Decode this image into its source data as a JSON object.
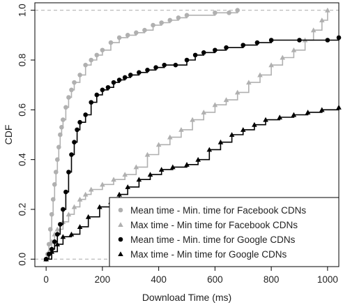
{
  "chart_data": {
    "type": "line",
    "title": "",
    "xlabel": "Download Time (ms)",
    "ylabel": "CDF",
    "xlim": [
      -40,
      1040
    ],
    "ylim": [
      -0.03,
      1.03
    ],
    "x_ticks": [
      0,
      200,
      400,
      600,
      800,
      1000
    ],
    "y_ticks": [
      0.0,
      0.2,
      0.4,
      0.6,
      0.8,
      1.0
    ],
    "x_tick_labels": [
      "0",
      "200",
      "400",
      "600",
      "800",
      "1000"
    ],
    "y_tick_labels": [
      "0.0",
      "0.2",
      "0.4",
      "0.6",
      "0.8",
      "1.0"
    ],
    "reference_lines": [
      0.0,
      1.0
    ],
    "legend_position": "bottom-right",
    "series": [
      {
        "name": "Mean time - Min. time for Facebook CDNs",
        "color": "#b0b0b0",
        "marker": "circle",
        "points": [
          [
            0,
            0.0
          ],
          [
            5,
            0.02
          ],
          [
            10,
            0.06
          ],
          [
            15,
            0.12
          ],
          [
            20,
            0.18
          ],
          [
            25,
            0.24
          ],
          [
            30,
            0.3
          ],
          [
            35,
            0.35
          ],
          [
            40,
            0.4
          ],
          [
            45,
            0.45
          ],
          [
            50,
            0.5
          ],
          [
            55,
            0.53
          ],
          [
            60,
            0.56
          ],
          [
            70,
            0.61
          ],
          [
            80,
            0.65
          ],
          [
            90,
            0.68
          ],
          [
            100,
            0.71
          ],
          [
            120,
            0.74
          ],
          [
            140,
            0.78
          ],
          [
            160,
            0.8
          ],
          [
            180,
            0.82
          ],
          [
            200,
            0.84
          ],
          [
            230,
            0.87
          ],
          [
            260,
            0.89
          ],
          [
            290,
            0.9
          ],
          [
            320,
            0.91
          ],
          [
            350,
            0.92
          ],
          [
            380,
            0.94
          ],
          [
            410,
            0.95
          ],
          [
            440,
            0.96
          ],
          [
            470,
            0.97
          ],
          [
            500,
            0.98
          ],
          [
            600,
            0.99
          ],
          [
            650,
            0.99
          ],
          [
            680,
            1.0
          ]
        ]
      },
      {
        "name": "Max time - Min time for Facebook CDNs",
        "color": "#b0b0b0",
        "marker": "triangle",
        "points": [
          [
            0,
            0.0
          ],
          [
            10,
            0.03
          ],
          [
            20,
            0.07
          ],
          [
            30,
            0.1
          ],
          [
            40,
            0.12
          ],
          [
            60,
            0.15
          ],
          [
            80,
            0.18
          ],
          [
            100,
            0.21
          ],
          [
            120,
            0.24
          ],
          [
            140,
            0.26
          ],
          [
            160,
            0.28
          ],
          [
            200,
            0.3
          ],
          [
            240,
            0.32
          ],
          [
            280,
            0.34
          ],
          [
            320,
            0.37
          ],
          [
            360,
            0.42
          ],
          [
            400,
            0.46
          ],
          [
            440,
            0.49
          ],
          [
            480,
            0.52
          ],
          [
            520,
            0.56
          ],
          [
            560,
            0.59
          ],
          [
            600,
            0.62
          ],
          [
            640,
            0.64
          ],
          [
            680,
            0.67
          ],
          [
            720,
            0.71
          ],
          [
            760,
            0.74
          ],
          [
            800,
            0.78
          ],
          [
            840,
            0.81
          ],
          [
            880,
            0.84
          ],
          [
            920,
            0.88
          ],
          [
            950,
            0.92
          ],
          [
            980,
            0.96
          ],
          [
            1000,
            1.0
          ]
        ]
      },
      {
        "name": "Mean time - Min. time for Google CDNs",
        "color": "#000000",
        "marker": "circle",
        "points": [
          [
            0,
            0.0
          ],
          [
            10,
            0.02
          ],
          [
            20,
            0.04
          ],
          [
            30,
            0.07
          ],
          [
            40,
            0.1
          ],
          [
            50,
            0.14
          ],
          [
            60,
            0.2
          ],
          [
            70,
            0.27
          ],
          [
            80,
            0.35
          ],
          [
            90,
            0.42
          ],
          [
            100,
            0.47
          ],
          [
            110,
            0.52
          ],
          [
            120,
            0.55
          ],
          [
            140,
            0.58
          ],
          [
            160,
            0.63
          ],
          [
            180,
            0.66
          ],
          [
            200,
            0.68
          ],
          [
            220,
            0.69
          ],
          [
            240,
            0.71
          ],
          [
            260,
            0.72
          ],
          [
            280,
            0.73
          ],
          [
            300,
            0.74
          ],
          [
            330,
            0.75
          ],
          [
            360,
            0.76
          ],
          [
            390,
            0.77
          ],
          [
            420,
            0.78
          ],
          [
            460,
            0.78
          ],
          [
            500,
            0.8
          ],
          [
            530,
            0.82
          ],
          [
            560,
            0.83
          ],
          [
            600,
            0.84
          ],
          [
            640,
            0.85
          ],
          [
            700,
            0.86
          ],
          [
            750,
            0.87
          ],
          [
            800,
            0.88
          ],
          [
            900,
            0.88
          ],
          [
            1000,
            0.88
          ],
          [
            1040,
            0.89
          ]
        ]
      },
      {
        "name": "Max time - Min time for Google CDNs",
        "color": "#000000",
        "marker": "triangle",
        "points": [
          [
            0,
            0.0
          ],
          [
            20,
            0.03
          ],
          [
            40,
            0.06
          ],
          [
            60,
            0.09
          ],
          [
            90,
            0.1
          ],
          [
            120,
            0.13
          ],
          [
            150,
            0.17
          ],
          [
            190,
            0.21
          ],
          [
            230,
            0.23
          ],
          [
            260,
            0.26
          ],
          [
            290,
            0.29
          ],
          [
            330,
            0.32
          ],
          [
            370,
            0.34
          ],
          [
            410,
            0.36
          ],
          [
            450,
            0.37
          ],
          [
            500,
            0.38
          ],
          [
            540,
            0.4
          ],
          [
            580,
            0.44
          ],
          [
            620,
            0.47
          ],
          [
            660,
            0.5
          ],
          [
            700,
            0.52
          ],
          [
            740,
            0.54
          ],
          [
            780,
            0.56
          ],
          [
            830,
            0.57
          ],
          [
            880,
            0.58
          ],
          [
            930,
            0.59
          ],
          [
            980,
            0.6
          ],
          [
            1040,
            0.61
          ]
        ]
      }
    ]
  }
}
